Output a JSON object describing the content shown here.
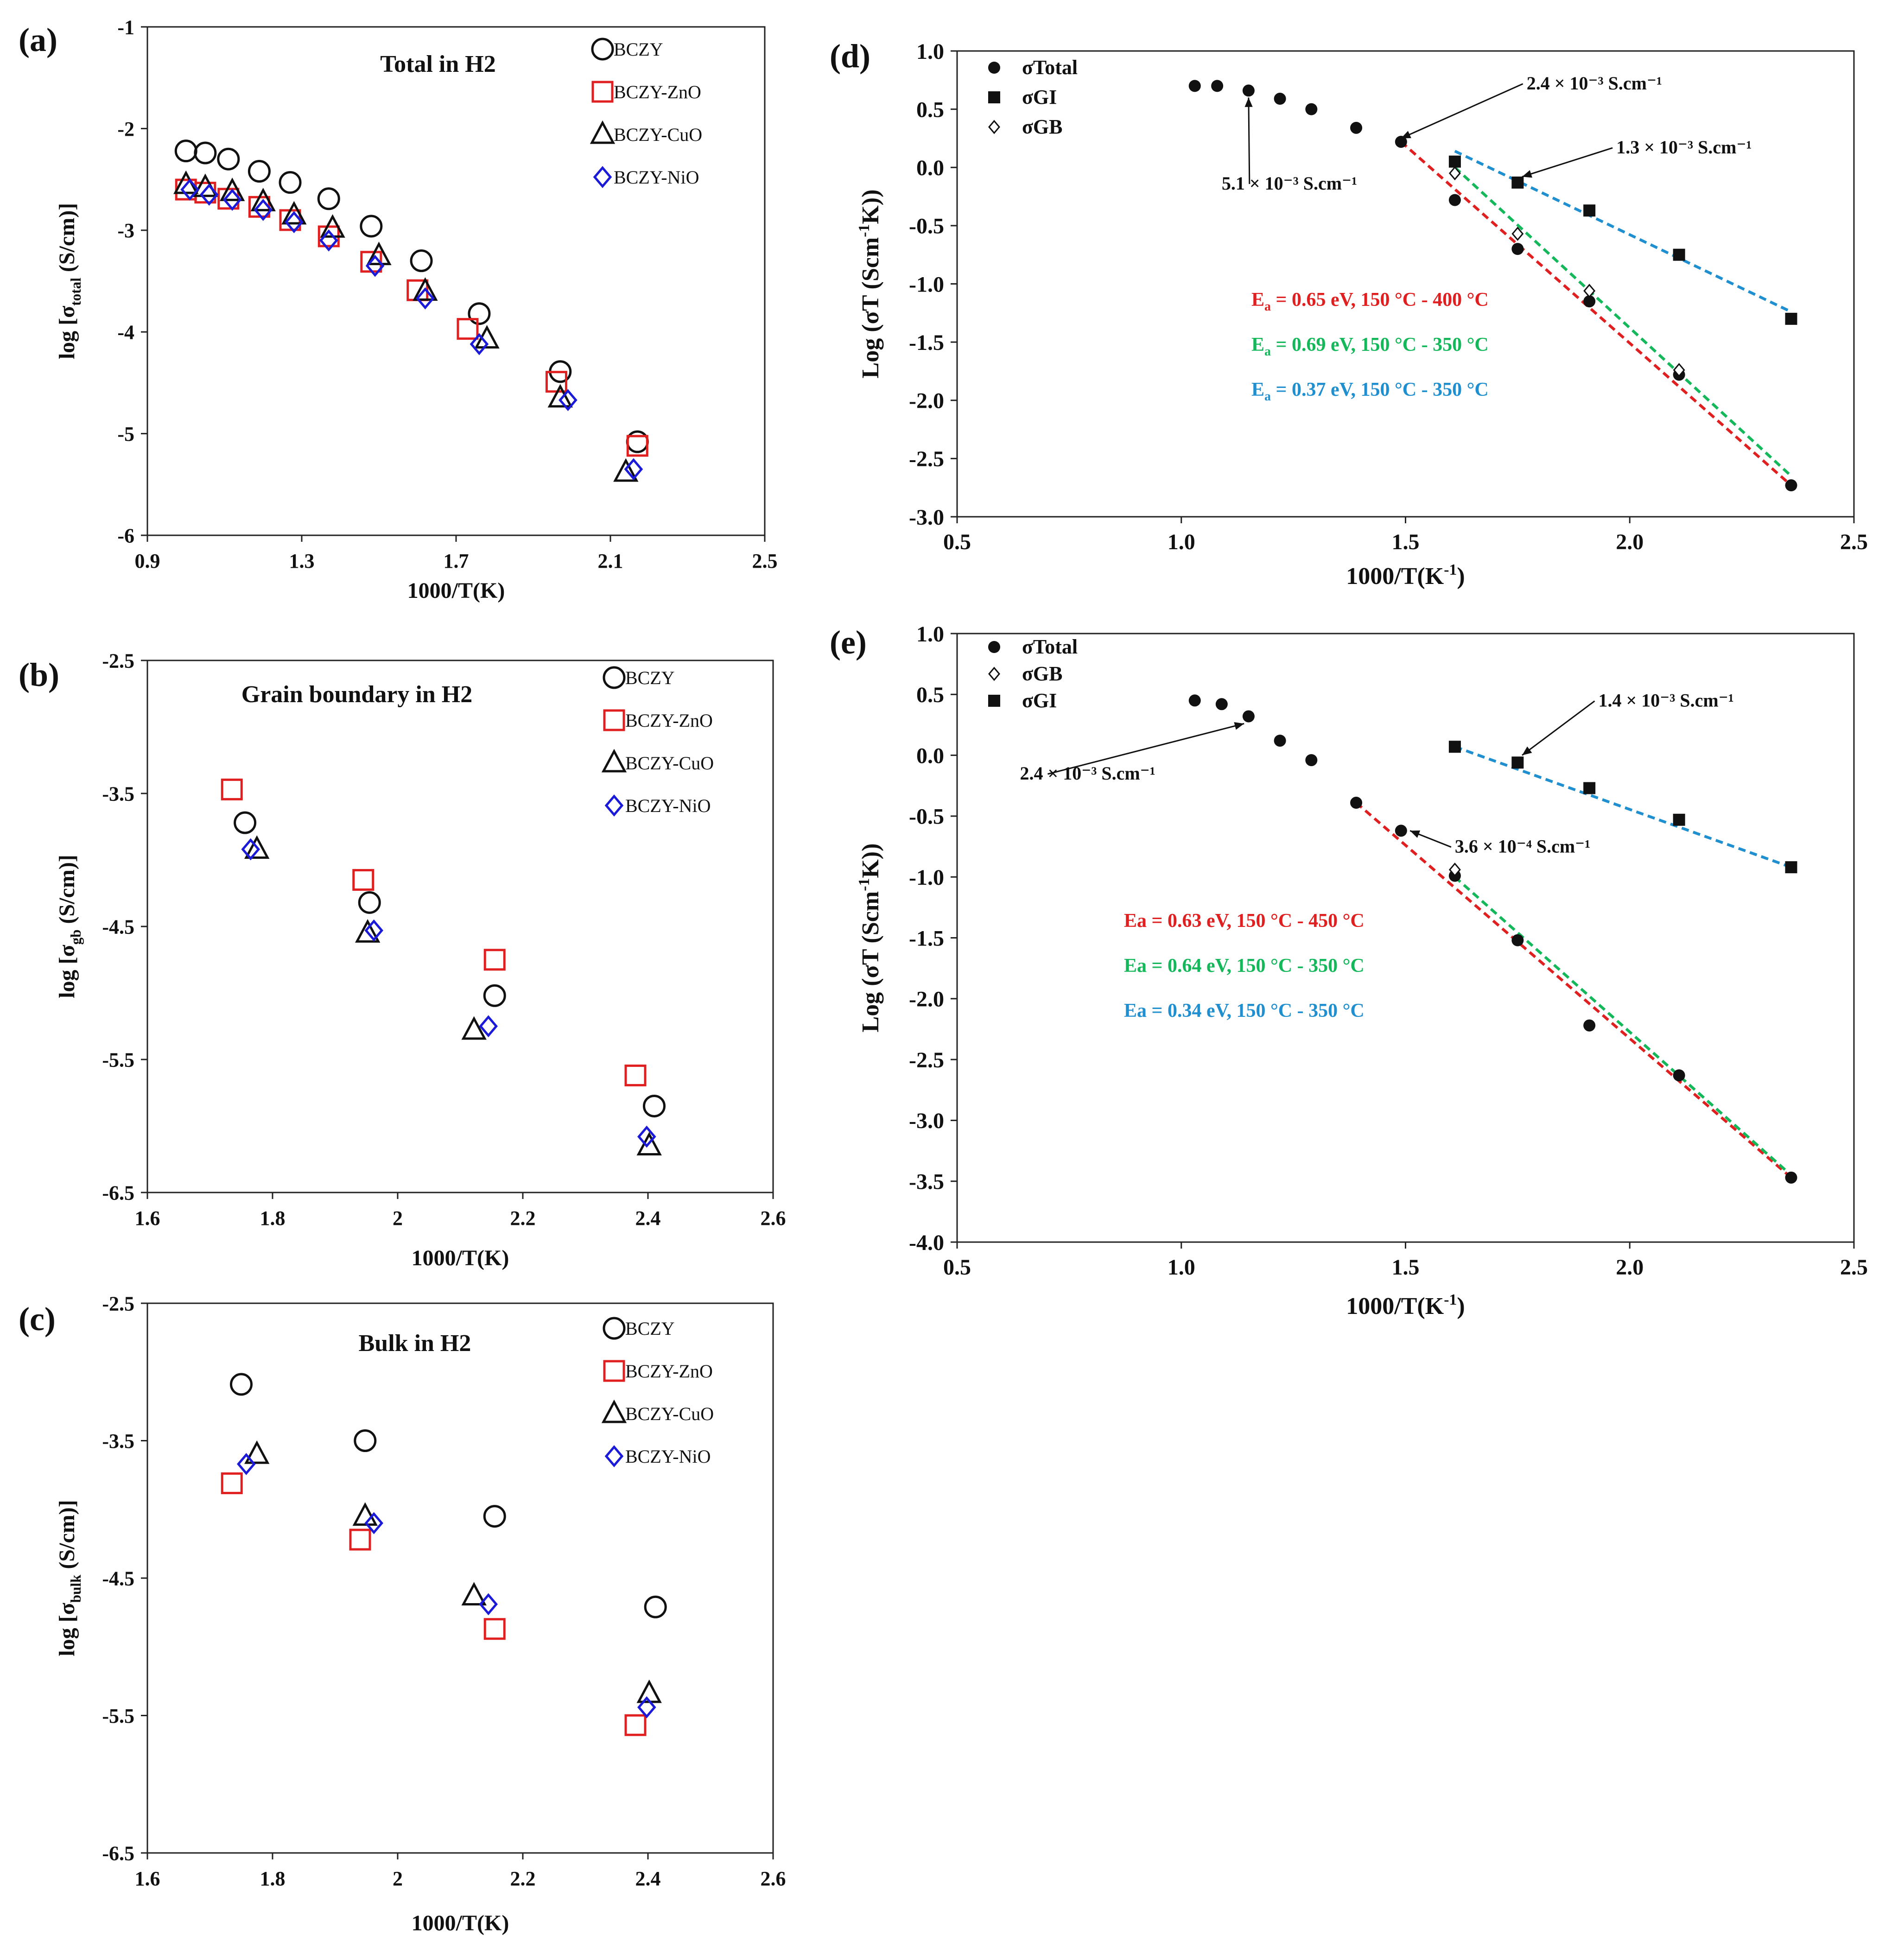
{
  "colors": {
    "red": "#e02020",
    "green": "#14b85a",
    "blue": "#1f8fd0",
    "navy": "#1a1ad8",
    "black": "#111111"
  },
  "chart_data": [
    {
      "id": "a",
      "panel_label": "(a)",
      "type": "scatter",
      "title": "Total in H2",
      "xlabel": "1000/T(K)",
      "ylabel": {
        "pre": "log [σ",
        "sub": "total",
        "post": " (S/cm)]"
      },
      "xlim": [
        0.9,
        2.5
      ],
      "ylim": [
        -6,
        -1
      ],
      "xticks": [
        0.9,
        1.3,
        1.7,
        2.1,
        2.5
      ],
      "xtick_labels": [
        "0.9",
        "1.3",
        "1.7",
        "2.1",
        "2.5"
      ],
      "yticks": [
        -6,
        -5,
        -4,
        -3,
        -2,
        -1
      ],
      "ytick_labels": [
        "-6",
        "-5",
        "-4",
        "-3",
        "-2",
        "-1"
      ],
      "legend": [
        "BCZY",
        "BCZY-ZnO",
        "BCZY-CuO",
        "BCZY-NiO"
      ],
      "series": [
        {
          "name": "BCZY",
          "marker": "circle",
          "color": "#111111",
          "x": [
            1.0,
            1.05,
            1.11,
            1.19,
            1.27,
            1.37,
            1.48,
            1.61,
            1.76,
            1.97,
            2.17
          ],
          "y": [
            -2.22,
            -2.24,
            -2.3,
            -2.42,
            -2.53,
            -2.69,
            -2.96,
            -3.3,
            -3.82,
            -4.39,
            -5.08
          ]
        },
        {
          "name": "BCZY-ZnO",
          "marker": "square",
          "color": "#e02020",
          "x": [
            1.0,
            1.05,
            1.11,
            1.19,
            1.27,
            1.37,
            1.48,
            1.6,
            1.73,
            1.96,
            2.17
          ],
          "y": [
            -2.6,
            -2.63,
            -2.69,
            -2.77,
            -2.9,
            -3.06,
            -3.31,
            -3.59,
            -3.97,
            -4.49,
            -5.12
          ]
        },
        {
          "name": "BCZY-CuO",
          "marker": "triangle",
          "color": "#111111",
          "x": [
            1.0,
            1.05,
            1.12,
            1.2,
            1.28,
            1.38,
            1.5,
            1.62,
            1.78,
            1.97,
            2.14
          ],
          "y": [
            -2.55,
            -2.58,
            -2.62,
            -2.72,
            -2.85,
            -2.98,
            -3.25,
            -3.6,
            -4.07,
            -4.65,
            -5.38
          ]
        },
        {
          "name": "BCZY-NiO",
          "marker": "diamond",
          "color": "#1a1ad8",
          "x": [
            1.01,
            1.06,
            1.12,
            1.2,
            1.28,
            1.37,
            1.49,
            1.62,
            1.76,
            1.99,
            2.16
          ],
          "y": [
            -2.6,
            -2.65,
            -2.7,
            -2.8,
            -2.92,
            -3.1,
            -3.35,
            -3.67,
            -4.12,
            -4.67,
            -5.35
          ]
        }
      ]
    },
    {
      "id": "b",
      "panel_label": "(b)",
      "type": "scatter",
      "title": "Grain boundary in H2",
      "xlabel": "1000/T(K)",
      "ylabel": {
        "pre": "log [σ",
        "sub": "gb",
        "post": " (S/cm)]"
      },
      "xlim": [
        1.6,
        2.6
      ],
      "ylim": [
        -6.5,
        -2.5
      ],
      "xticks": [
        1.6,
        1.8,
        2.0,
        2.2,
        2.4,
        2.6
      ],
      "xtick_labels": [
        "1.6",
        "1.8",
        "2",
        "2.2",
        "2.4",
        "2.6"
      ],
      "yticks": [
        -6.5,
        -5.5,
        -4.5,
        -3.5,
        -2.5
      ],
      "ytick_labels": [
        "-6.5",
        "-5.5",
        "-4.5",
        "-3.5",
        "-2.5"
      ],
      "legend": [
        "BCZY",
        "BCZY-ZnO",
        "BCZY-CuO",
        "BCZY-NiO"
      ],
      "series": [
        {
          "name": "BCZY",
          "marker": "circle",
          "color": "#111111",
          "x": [
            1.756,
            1.955,
            2.155,
            2.41
          ],
          "y": [
            -3.72,
            -4.32,
            -5.02,
            -5.85
          ]
        },
        {
          "name": "BCZY-ZnO",
          "marker": "square",
          "color": "#e02020",
          "x": [
            1.735,
            1.945,
            2.155,
            2.38
          ],
          "y": [
            -3.47,
            -4.15,
            -4.75,
            -5.62
          ]
        },
        {
          "name": "BCZY-CuO",
          "marker": "triangle",
          "color": "#111111",
          "x": [
            1.775,
            1.952,
            2.122,
            2.402
          ],
          "y": [
            -3.92,
            -4.55,
            -5.28,
            -6.15
          ]
        },
        {
          "name": "BCZY-NiO",
          "marker": "diamond",
          "color": "#1a1ad8",
          "x": [
            1.765,
            1.962,
            2.145,
            2.398
          ],
          "y": [
            -3.92,
            -4.53,
            -5.25,
            -6.08
          ]
        }
      ]
    },
    {
      "id": "c",
      "panel_label": "(c)",
      "type": "scatter",
      "title": "Bulk in H2",
      "xlabel": "1000/T(K)",
      "ylabel": {
        "pre": "log [σ",
        "sub": "bulk",
        "post": " (S/cm)]"
      },
      "xlim": [
        1.6,
        2.6
      ],
      "ylim": [
        -6.5,
        -2.5
      ],
      "xticks": [
        1.6,
        1.8,
        2.0,
        2.2,
        2.4,
        2.6
      ],
      "xtick_labels": [
        "1.6",
        "1.8",
        "2",
        "2.2",
        "2.4",
        "2.6"
      ],
      "yticks": [
        -6.5,
        -5.5,
        -4.5,
        -3.5,
        -2.5
      ],
      "ytick_labels": [
        "-6.5",
        "-5.5",
        "-4.5",
        "-3.5",
        "-2.5"
      ],
      "legend": [
        "BCZY",
        "BCZY-ZnO",
        "BCZY-CuO",
        "BCZY-NiO"
      ],
      "series": [
        {
          "name": "BCZY",
          "marker": "circle",
          "color": "#111111",
          "x": [
            1.75,
            1.948,
            2.155,
            2.412
          ],
          "y": [
            -3.09,
            -3.5,
            -4.05,
            -4.71
          ]
        },
        {
          "name": "BCZY-ZnO",
          "marker": "square",
          "color": "#e02020",
          "x": [
            1.735,
            1.94,
            2.155,
            2.38
          ],
          "y": [
            -3.81,
            -4.22,
            -4.87,
            -5.57
          ]
        },
        {
          "name": "BCZY-CuO",
          "marker": "triangle",
          "color": "#111111",
          "x": [
            1.775,
            1.948,
            2.122,
            2.402
          ],
          "y": [
            -3.6,
            -4.05,
            -4.63,
            -5.34
          ]
        },
        {
          "name": "BCZY-NiO",
          "marker": "diamond",
          "color": "#1a1ad8",
          "x": [
            1.758,
            1.962,
            2.145,
            2.398
          ],
          "y": [
            -3.67,
            -4.1,
            -4.69,
            -5.44
          ]
        }
      ]
    },
    {
      "id": "d",
      "panel_label": "(d)",
      "type": "scatter",
      "xlabel": {
        "pre": "1000/T(K",
        "sup": "-1",
        "post": ")"
      },
      "ylabel": {
        "pre": "Log (σT (Scm",
        "sup": "-1",
        "post": "K))"
      },
      "xlim": [
        0.5,
        2.5
      ],
      "ylim": [
        -3.0,
        1.0
      ],
      "xticks": [
        0.5,
        1.0,
        1.5,
        2.0,
        2.5
      ],
      "xtick_labels": [
        "0.5",
        "1.0",
        "1.5",
        "2.0",
        "2.5"
      ],
      "yticks": [
        -3.0,
        -2.5,
        -2.0,
        -1.5,
        -1.0,
        -0.5,
        0.0,
        0.5,
        1.0
      ],
      "ytick_labels": [
        "-3.0",
        "-2.5",
        "-2.0",
        "-1.5",
        "-1.0",
        "-0.5",
        "0.0",
        "0.5",
        "1.0"
      ],
      "legend": [
        "σTotal",
        "σGI",
        "σGB"
      ],
      "series": [
        {
          "name": "σTotal",
          "marker": "dot",
          "x": [
            1.03,
            1.08,
            1.15,
            1.22,
            1.29,
            1.39,
            1.49,
            1.61,
            1.75,
            1.91,
            2.11,
            2.36
          ],
          "y": [
            0.7,
            0.7,
            0.66,
            0.59,
            0.5,
            0.34,
            0.22,
            -0.28,
            -0.7,
            -1.15,
            -1.78,
            -2.73
          ]
        },
        {
          "name": "σGI",
          "marker": "filled-square",
          "x": [
            1.61,
            1.75,
            1.91,
            2.11,
            2.36
          ],
          "y": [
            0.05,
            -0.13,
            -0.37,
            -0.75,
            -1.3
          ]
        },
        {
          "name": "σGB",
          "marker": "open-diamond",
          "x": [
            1.61,
            1.75,
            1.91,
            2.11
          ],
          "y": [
            -0.05,
            -0.57,
            -1.06,
            -1.74
          ]
        }
      ],
      "fit_lines": [
        {
          "color": "#e02020",
          "x": [
            1.49,
            2.36
          ],
          "y": [
            0.22,
            -2.73
          ]
        },
        {
          "color": "#14b85a",
          "x": [
            1.61,
            2.36
          ],
          "y": [
            0.0,
            -2.65
          ]
        },
        {
          "color": "#1f8fd0",
          "x": [
            1.61,
            2.36
          ],
          "y": [
            0.14,
            -1.24
          ]
        }
      ],
      "annotations": [
        {
          "text": "2.4 × 10⁻³ S.cm⁻¹",
          "text_x": 1.77,
          "text_y": 0.67,
          "arrow_to_x": 1.49,
          "arrow_to_y": 0.25
        },
        {
          "text": "1.3 × 10⁻³ S.cm⁻¹",
          "text_x": 1.97,
          "text_y": 0.12,
          "arrow_to_x": 1.76,
          "arrow_to_y": -0.08
        },
        {
          "text": "5.1 × 10⁻³ S.cm⁻¹",
          "text_x": 1.09,
          "text_y": -0.19,
          "arrow_to_x": 1.15,
          "arrow_to_y": 0.6
        }
      ],
      "ea_labels": [
        {
          "text": "= 0.65 eV, 150 °C - 400 °C",
          "color": "#e02020"
        },
        {
          "text": "= 0.69 eV, 150 °C - 350 °C",
          "color": "#14b85a"
        },
        {
          "text": "= 0.37 eV, 150 °C - 350 °C",
          "color": "#1f8fd0"
        }
      ]
    },
    {
      "id": "e",
      "panel_label": "(e)",
      "type": "scatter",
      "xlabel": {
        "pre": "1000/T(K",
        "sup": "-1",
        "post": ")"
      },
      "ylabel": {
        "pre": "Log (σT (Scm",
        "sup": "-1",
        "post": "K))"
      },
      "xlim": [
        0.5,
        2.5
      ],
      "ylim": [
        -4.0,
        1.0
      ],
      "xticks": [
        0.5,
        1.0,
        1.5,
        2.0,
        2.5
      ],
      "xtick_labels": [
        "0.5",
        "1.0",
        "1.5",
        "2.0",
        "2.5"
      ],
      "yticks": [
        -4.0,
        -3.5,
        -3.0,
        -2.5,
        -2.0,
        -1.5,
        -1.0,
        -0.5,
        0.0,
        0.5,
        1.0
      ],
      "ytick_labels": [
        "-4.0",
        "-3.5",
        "-3.0",
        "-2.5",
        "-2.0",
        "-1.5",
        "-1.0",
        "-0.5",
        "0.0",
        "0.5",
        "1.0"
      ],
      "legend": [
        "σTotal",
        "σGB",
        "σGI"
      ],
      "series": [
        {
          "name": "σTotal",
          "marker": "dot",
          "x": [
            1.03,
            1.09,
            1.15,
            1.22,
            1.29,
            1.39,
            1.49,
            1.61,
            1.75,
            1.91,
            2.11,
            2.36
          ],
          "y": [
            0.45,
            0.42,
            0.32,
            0.12,
            -0.04,
            -0.39,
            -0.62,
            -0.99,
            -1.52,
            -2.22,
            -2.63,
            -3.47
          ]
        },
        {
          "name": "σGB",
          "marker": "open-diamond",
          "x": [
            1.61
          ],
          "y": [
            -0.94
          ]
        },
        {
          "name": "σGI",
          "marker": "filled-square",
          "x": [
            1.61,
            1.75,
            1.91,
            2.11,
            2.36
          ],
          "y": [
            0.07,
            -0.06,
            -0.27,
            -0.53,
            -0.92
          ]
        }
      ],
      "fit_lines": [
        {
          "color": "#e02020",
          "x": [
            1.39,
            2.36
          ],
          "y": [
            -0.39,
            -3.47
          ]
        },
        {
          "color": "#14b85a",
          "x": [
            1.61,
            2.36
          ],
          "y": [
            -1.0,
            -3.45
          ]
        },
        {
          "color": "#1f8fd0",
          "x": [
            1.61,
            2.36
          ],
          "y": [
            0.07,
            -0.92
          ]
        }
      ],
      "annotations": [
        {
          "text": "1.4 × 10⁻³ S.cm⁻¹",
          "text_x": 1.93,
          "text_y": 0.4,
          "arrow_to_x": 1.76,
          "arrow_to_y": 0.0
        },
        {
          "text": "2.4 × 10⁻³ S.cm⁻¹",
          "text_x": 0.64,
          "text_y": -0.2,
          "arrow_to_x": 1.14,
          "arrow_to_y": 0.26
        },
        {
          "text": "3.6 × 10⁻⁴ S.cm⁻¹",
          "text_x": 1.61,
          "text_y": -0.8,
          "arrow_to_x": 1.51,
          "arrow_to_y": -0.62
        }
      ],
      "ea_labels": [
        {
          "text": "Ea = 0.63 eV, 150 °C - 450 °C",
          "color": "#e02020"
        },
        {
          "text": "Ea = 0.64 eV, 150 °C - 350 °C",
          "color": "#14b85a"
        },
        {
          "text": "Ea = 0.34 eV, 150 °C - 350 °C",
          "color": "#1f8fd0"
        }
      ]
    }
  ]
}
